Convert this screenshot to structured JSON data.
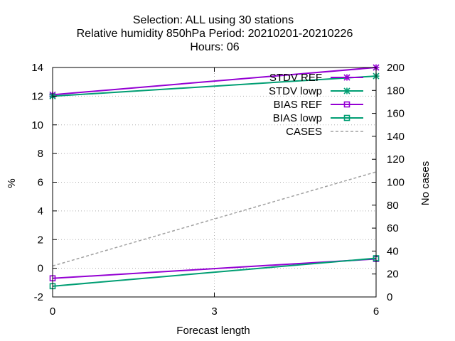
{
  "chart_data": {
    "type": "line",
    "title_lines": [
      "Selection: ALL using    30 stations",
      "Relative humidity 850hPa   Period: 20210201-20210226",
      "Hours:  06"
    ],
    "xlabel": "Forecast length",
    "ylabel": "%",
    "y2label": "No cases",
    "x": [
      0,
      6
    ],
    "xlim": [
      0,
      6
    ],
    "xticks": [
      0,
      3,
      6
    ],
    "ylim": [
      -2,
      14
    ],
    "yticks": [
      -2,
      0,
      2,
      4,
      6,
      8,
      10,
      12,
      14
    ],
    "y2lim": [
      0,
      200
    ],
    "y2ticks": [
      0,
      20,
      40,
      60,
      80,
      100,
      120,
      140,
      160,
      180,
      200
    ],
    "grid": true,
    "legend_position": "top-right",
    "series": [
      {
        "name": "STDV REF",
        "axis": "y",
        "color": "#9400d3",
        "marker": "star",
        "dash": "",
        "values": [
          12.1,
          14.0
        ]
      },
      {
        "name": "STDV lowp",
        "axis": "y",
        "color": "#009e73",
        "marker": "star",
        "dash": "",
        "values": [
          12.0,
          13.4
        ]
      },
      {
        "name": "BIAS REF",
        "axis": "y",
        "color": "#9400d3",
        "marker": "square",
        "dash": "",
        "values": [
          -0.7,
          0.65
        ]
      },
      {
        "name": "BIAS lowp",
        "axis": "y",
        "color": "#009e73",
        "marker": "square",
        "dash": "",
        "values": [
          -1.25,
          0.7
        ]
      },
      {
        "name": "CASES",
        "axis": "y2",
        "color": "#a0a0a0",
        "marker": "none",
        "dash": "4 3",
        "values": [
          27,
          109
        ]
      }
    ]
  }
}
